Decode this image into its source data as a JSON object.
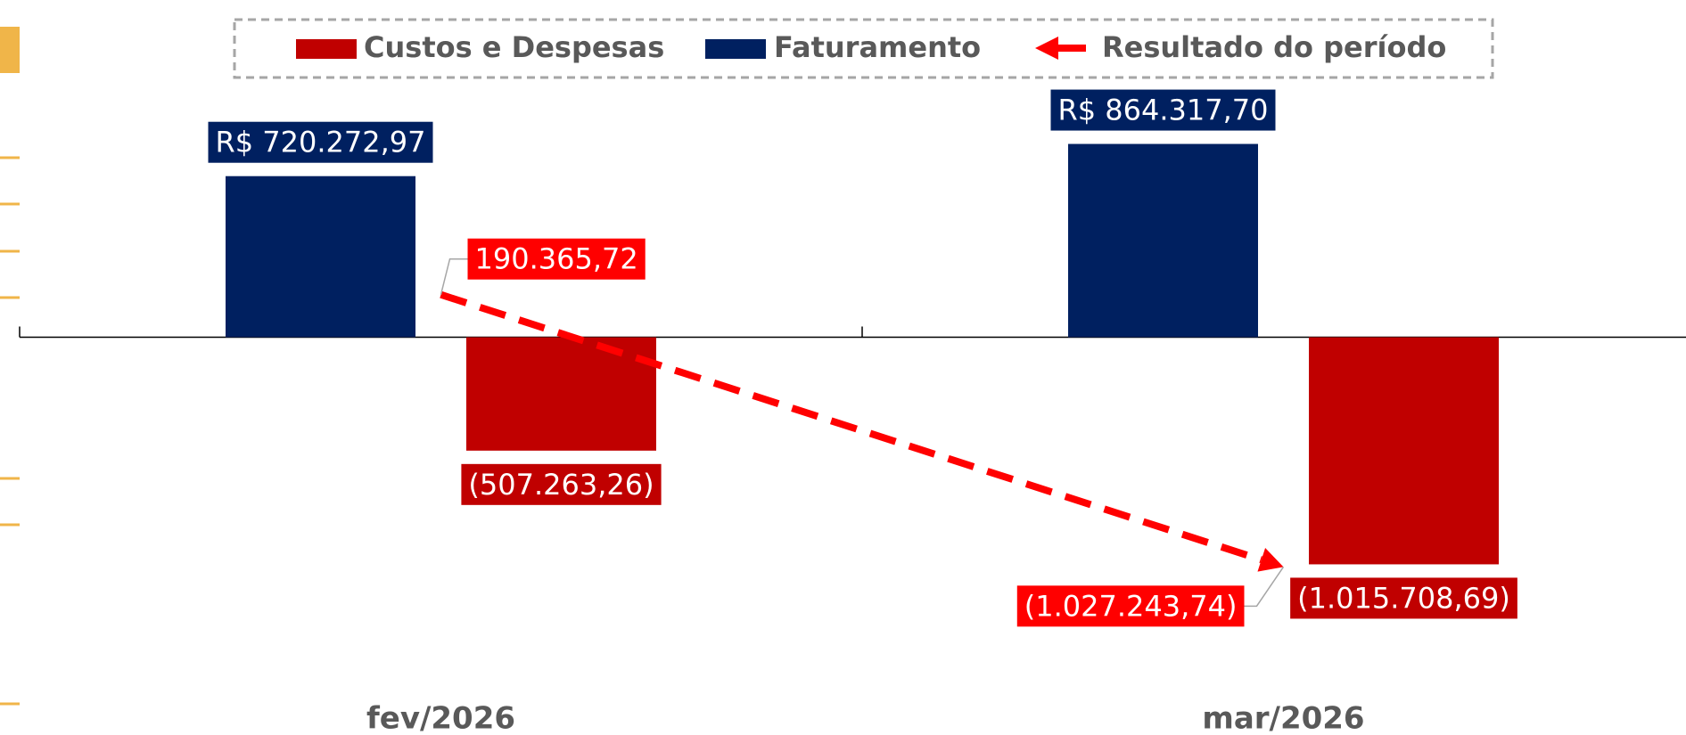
{
  "chart_data": {
    "type": "bar",
    "categories": [
      "fev/2026",
      "mar/2026"
    ],
    "ylim": [
      -1500000,
      1500000
    ],
    "series": [
      {
        "name": "Custos e Despesas",
        "type": "bar",
        "color": "#c00000",
        "values": [
          -507263.26,
          -1015708.69
        ],
        "value_labels": [
          "(507.263,26)",
          "(1.015.708,69)"
        ]
      },
      {
        "name": "Faturamento",
        "type": "bar",
        "color": "#002060",
        "values": [
          720272.97,
          864317.7
        ],
        "value_labels": [
          "R$ 720.272,97",
          "R$ 864.317,70"
        ]
      },
      {
        "name": "Resultado do período",
        "type": "line",
        "color": "#ff0000",
        "values": [
          190365.72,
          -1027243.74
        ],
        "value_labels": [
          "190.365,72",
          "(1.027.243,74)"
        ]
      }
    ]
  }
}
